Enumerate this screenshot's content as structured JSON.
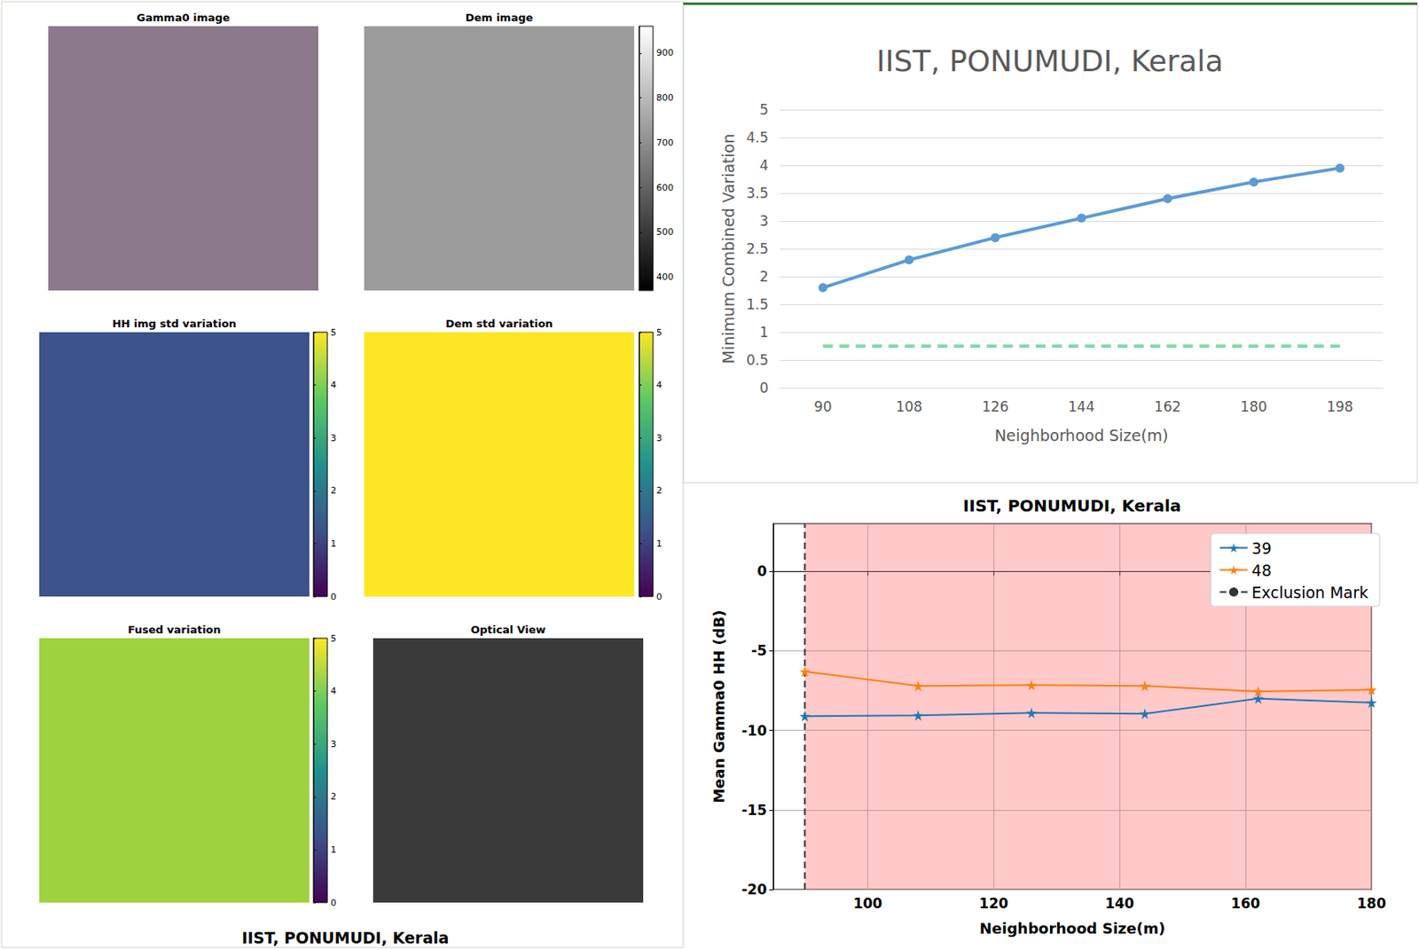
{
  "chart_data": [
    {
      "type": "image",
      "title": "Gamma0 image",
      "color": "#8a7a8c"
    },
    {
      "type": "image",
      "title": "Dem image",
      "color": "#9c9c9c",
      "colorbar": {
        "range": [
          370,
          960
        ],
        "ticks": [
          400,
          500,
          600,
          700,
          800,
          900
        ],
        "colors": [
          "#000000",
          "#ffffff"
        ]
      }
    },
    {
      "type": "image",
      "title": "HH img std variation",
      "color": "#3b528b",
      "colorbar": {
        "range": [
          0,
          5
        ],
        "ticks": [
          0,
          1,
          2,
          3,
          4,
          5
        ],
        "colors": [
          "#440154",
          "#3b528b",
          "#21918c",
          "#5ec962",
          "#fde725"
        ]
      }
    },
    {
      "type": "image",
      "title": "Dem std variation",
      "color": "#fde725",
      "colorbar": {
        "range": [
          0,
          5
        ],
        "ticks": [
          0,
          1,
          2,
          3,
          4,
          5
        ],
        "colors": [
          "#440154",
          "#3b528b",
          "#21918c",
          "#5ec962",
          "#fde725"
        ]
      }
    },
    {
      "type": "image",
      "title": "Fused variation",
      "color": "#9fd23f",
      "colorbar": {
        "range": [
          0,
          5
        ],
        "ticks": [
          0,
          1,
          2,
          3,
          4,
          5
        ],
        "colors": [
          "#440154",
          "#3b528b",
          "#21918c",
          "#5ec962",
          "#fde725"
        ]
      }
    },
    {
      "type": "image",
      "title": "Optical View",
      "color": "#3a3a3a"
    },
    {
      "type": "text",
      "title": "IIST, PONUMUDI, Kerala"
    },
    {
      "type": "line",
      "title": "IIST, PONUMUDI, Kerala",
      "x_label": "Neighborhood Size(m)",
      "y_label": "Minimum Combined Variation",
      "categories": [
        90,
        108,
        126,
        144,
        162,
        180,
        198
      ],
      "series": [
        {
          "color": "#5b9bd5",
          "marker": "circle",
          "values": [
            1.8,
            2.3,
            2.7,
            3.05,
            3.4,
            3.7,
            3.95
          ]
        },
        {
          "color": "#7fdba8",
          "marker": "none",
          "line_style": "dashed",
          "values": [
            0.75,
            0.75,
            0.75,
            0.75,
            0.75,
            0.75,
            0.75
          ]
        }
      ],
      "ylim": [
        0,
        5
      ],
      "yticks": [
        0,
        0.5,
        1,
        1.5,
        2,
        2.5,
        3,
        3.5,
        4,
        4.5,
        5
      ],
      "grid": true
    },
    {
      "type": "line",
      "title": "IIST, PONUMUDI, Kerala",
      "x_label": "Neighborhood Size(m)",
      "y_label": "Mean Gamma0 HH (dB)",
      "xlim": [
        85,
        180
      ],
      "xticks": [
        100,
        120,
        140,
        160,
        180
      ],
      "ylim": [
        -20,
        3
      ],
      "yticks": [
        -20,
        -15,
        -10,
        -5,
        0
      ],
      "grid": true,
      "legend": "upper right",
      "shaded_x": [
        90,
        180
      ],
      "series": [
        {
          "name": "39",
          "color": "#1f77b4",
          "marker": "star",
          "x": [
            90,
            108,
            126,
            144,
            162,
            180
          ],
          "values": [
            -9.1,
            -9.05,
            -8.9,
            -8.95,
            -8.0,
            -8.25
          ]
        },
        {
          "name": "48",
          "color": "#ff7f0e",
          "marker": "star",
          "x": [
            90,
            108,
            126,
            144,
            162,
            180
          ],
          "values": [
            -6.3,
            -7.2,
            -7.15,
            -7.2,
            -7.55,
            -7.45
          ]
        },
        {
          "name": "Exclusion Mark",
          "color": "#333333",
          "marker": "none",
          "line_style": "dashed",
          "x": [
            90,
            90
          ],
          "values": [
            -20,
            3
          ]
        }
      ]
    }
  ]
}
